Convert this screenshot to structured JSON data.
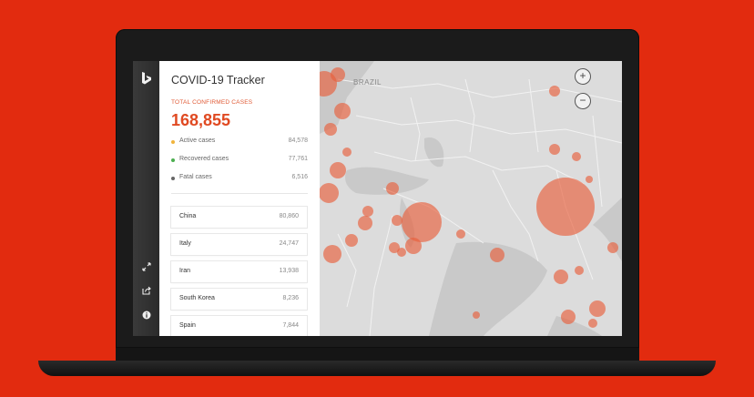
{
  "panel": {
    "title": "COVID-19 Tracker",
    "total_label": "TOTAL CONFIRMED CASES",
    "total_value": "168,855",
    "stats": [
      {
        "label": "Active cases",
        "value": "84,578",
        "color": "#f0b43c"
      },
      {
        "label": "Recovered cases",
        "value": "77,761",
        "color": "#4caf50"
      },
      {
        "label": "Fatal cases",
        "value": "6,516",
        "color": "#666666"
      }
    ],
    "countries": [
      {
        "name": "China",
        "count": "80,860"
      },
      {
        "name": "Italy",
        "count": "24,747"
      },
      {
        "name": "Iran",
        "count": "13,938"
      },
      {
        "name": "South Korea",
        "count": "8,236"
      },
      {
        "name": "Spain",
        "count": "7,844"
      }
    ]
  },
  "rail": {
    "logo_icon": "bing-logo-icon",
    "icons": [
      "expand-icon",
      "share-icon",
      "info-icon"
    ]
  },
  "map": {
    "labels": {
      "brazil": "BRAZIL"
    },
    "zoom_in": "+",
    "zoom_out": "−",
    "bubble_color": "#e8603c"
  }
}
